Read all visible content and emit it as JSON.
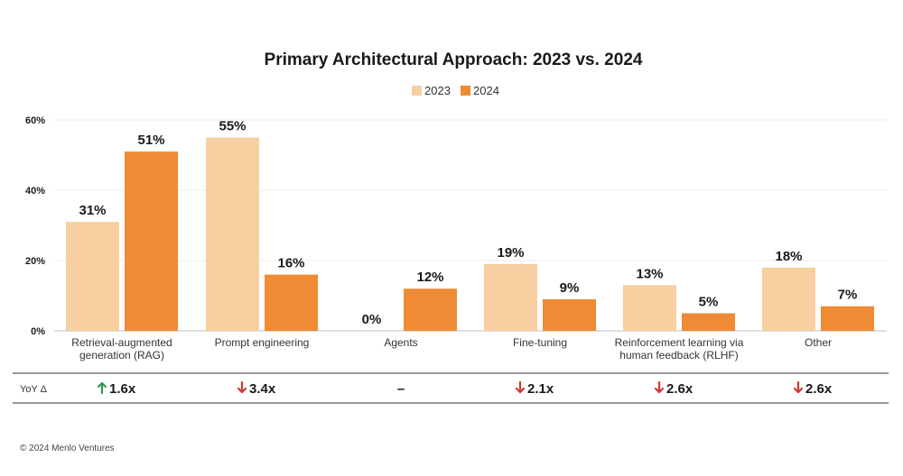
{
  "chart_data": {
    "type": "bar",
    "title": "Primary Architectural Approach: 2023 vs. 2024",
    "categories": [
      [
        "Retrieval-augmented",
        "generation (RAG)"
      ],
      [
        "Prompt engineering"
      ],
      [
        "Agents"
      ],
      [
        "Fine-tuning"
      ],
      [
        "Reinforcement learning via",
        "human feedback (RLHF)"
      ],
      [
        "Other"
      ]
    ],
    "series": [
      {
        "name": "2023",
        "color": "#f7cfa0",
        "values": [
          31,
          55,
          0,
          19,
          13,
          18
        ]
      },
      {
        "name": "2024",
        "color": "#ef8a35",
        "values": [
          51,
          16,
          12,
          9,
          5,
          7
        ]
      }
    ],
    "value_suffix": "%",
    "ylim": [
      0,
      60
    ],
    "yticks": [
      0,
      20,
      40,
      60
    ],
    "ytick_labels": [
      "0%",
      "20%",
      "40%",
      "60%"
    ],
    "grid": true,
    "legend_position": "top-center",
    "xlabel": "",
    "ylabel": ""
  },
  "yoy": {
    "label": "YoY Δ",
    "values": [
      {
        "dir": "up",
        "text": "1.6x"
      },
      {
        "dir": "down",
        "text": "3.4x"
      },
      {
        "dir": "none",
        "text": "–"
      },
      {
        "dir": "down",
        "text": "2.1x"
      },
      {
        "dir": "down",
        "text": "2.6x"
      },
      {
        "dir": "down",
        "text": "2.6x"
      }
    ],
    "up_color": "#2e9b4a",
    "down_color": "#d9342b"
  },
  "footer": "© 2024 Menlo Ventures"
}
